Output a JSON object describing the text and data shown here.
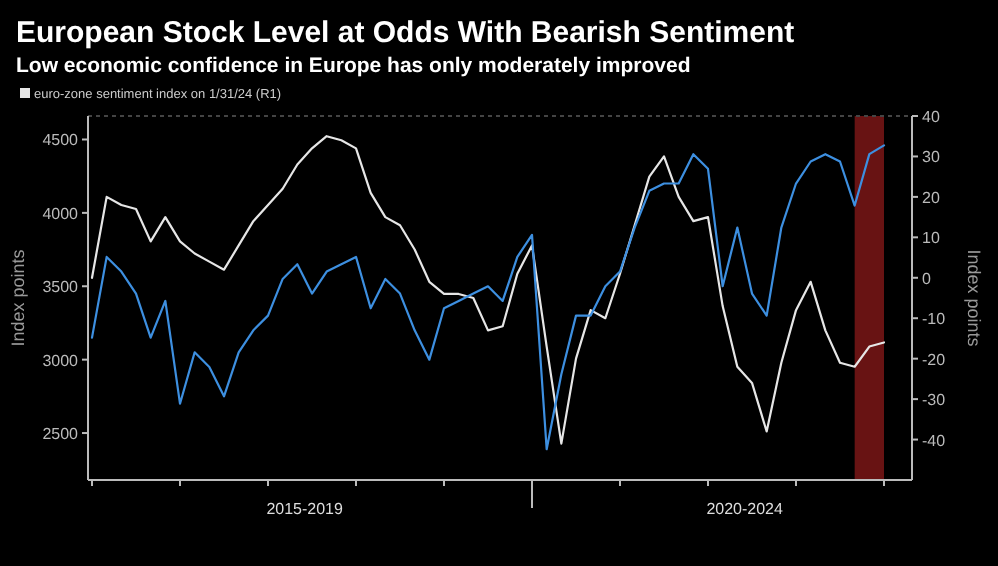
{
  "chart_data": {
    "type": "line",
    "title": "European Stock Level at Odds With Bearish Sentiment",
    "subtitle": "Low economic confidence in Europe has only moderately improved",
    "ylabel": "Index points",
    "y2label": "Index points",
    "categories": [
      null,
      null,
      null,
      null,
      null,
      null,
      null,
      null,
      null,
      null,
      null,
      null,
      null,
      null,
      null,
      null,
      null,
      null,
      null,
      null,
      null,
      null,
      null,
      null,
      null,
      null,
      null,
      null,
      null,
      null,
      null,
      null,
      null,
      null,
      null,
      null,
      null,
      null,
      null,
      null,
      null,
      null,
      null,
      null,
      null,
      null,
      null,
      null,
      null,
      null,
      null,
      null,
      null,
      null,
      null
    ],
    "annotations": [
      "2015-2019",
      "2020-2024"
    ],
    "ylim": [
      2180,
      4660
    ],
    "yticks": [
      2500,
      3000,
      3500,
      4000,
      4500
    ],
    "y2lim": [
      -50,
      40
    ],
    "y2ticks": [
      -40,
      -30,
      -20,
      -10,
      0,
      10,
      20,
      30,
      40
    ],
    "legend": "top left",
    "grid": false,
    "line_style": "solid",
    "marker": "none",
    "series": [
      {
        "name": "euro-zone sentiment index on 1/31/24 (R1)",
        "color": "#e6e6e6",
        "axis": "y2",
        "values": [
          0,
          20,
          18,
          17,
          9,
          15,
          9,
          6,
          4,
          2,
          8,
          14,
          18,
          22,
          28,
          32,
          35,
          34,
          32,
          21,
          15,
          13,
          7,
          -1,
          -4,
          -4,
          -5,
          -13,
          -12,
          1,
          8,
          -17,
          -41,
          -20,
          -8,
          -10,
          1,
          13,
          25,
          30,
          20,
          14,
          15,
          -7,
          -22,
          -26,
          -38,
          -21,
          -8,
          -1,
          -13,
          -21,
          -22,
          -17,
          -16
        ]
      },
      {
        "color": "#3d8fe0",
        "values": [
          3150,
          3700,
          3600,
          3450,
          3150,
          3400,
          2700,
          3050,
          2950,
          2750,
          3050,
          3200,
          3300,
          3550,
          3650,
          3450,
          3600,
          3650,
          3700,
          3350,
          3550,
          3450,
          3200,
          3000,
          3350,
          3400,
          3450,
          3500,
          3400,
          3700,
          3850,
          2390,
          2900,
          3300,
          3300,
          3500,
          3600,
          3900,
          4150,
          4200,
          4200,
          4400,
          4300,
          3500,
          3900,
          3450,
          3300,
          3900,
          4200,
          4350,
          4400,
          4350,
          4050,
          4400,
          4460
        ]
      }
    ]
  }
}
